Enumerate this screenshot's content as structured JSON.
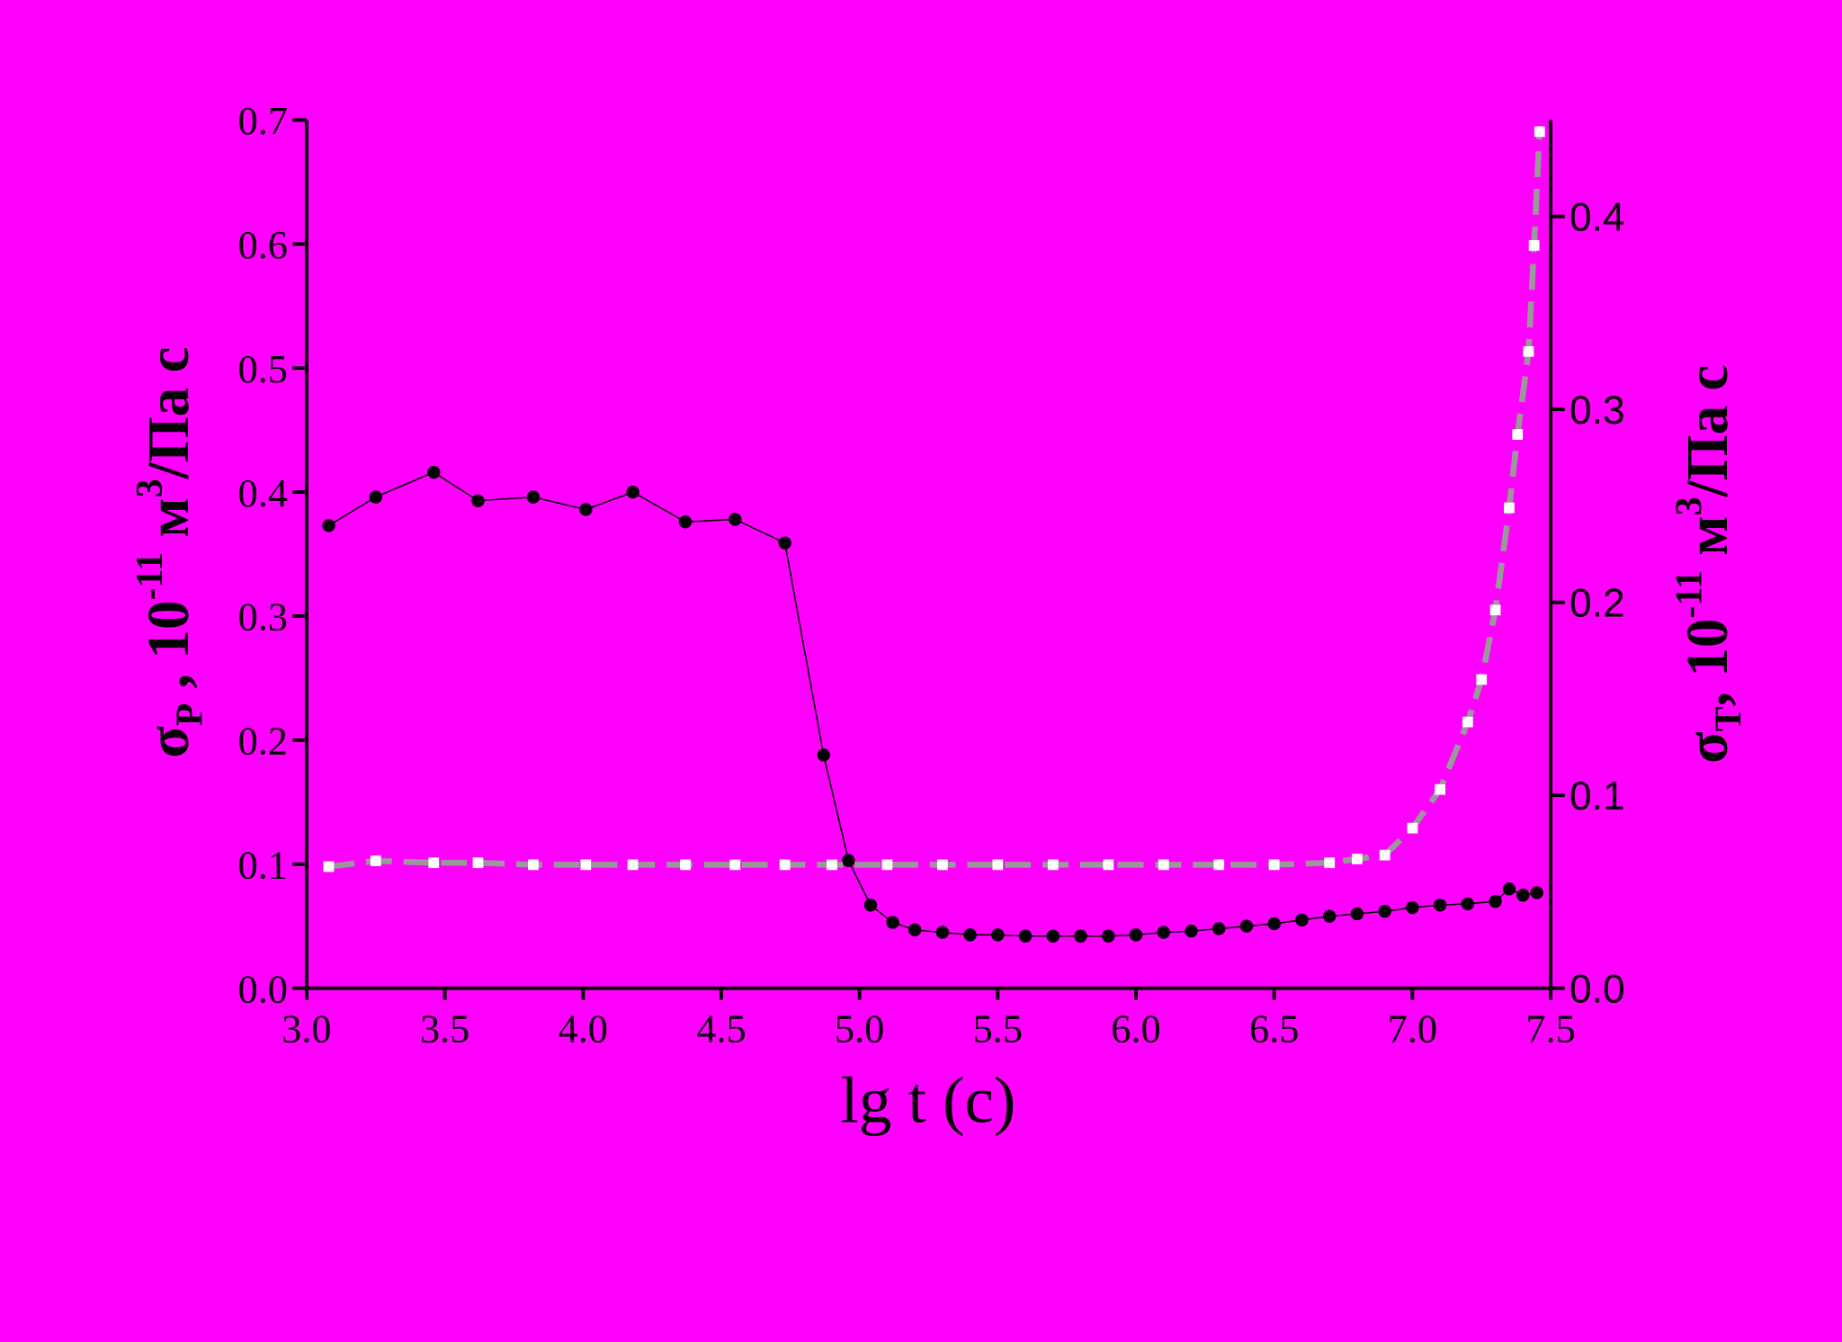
{
  "chart_data": {
    "type": "scatter",
    "background": "#ff00ff",
    "xlabel": "lg t (c)",
    "ylabel": [
      {
        "text": "σ"
      },
      {
        "text": "P",
        "shift": "sub"
      },
      {
        "text": " , 10"
      },
      {
        "text": "-11",
        "shift": "sup"
      },
      {
        "text": " м"
      },
      {
        "text": "3",
        "shift": "sup"
      },
      {
        "text": "/Па с"
      }
    ],
    "y2label": [
      {
        "text": "σ"
      },
      {
        "text": "Т",
        "shift": "sub"
      },
      {
        "text": ", 10"
      },
      {
        "text": "-11",
        "shift": "sup"
      },
      {
        "text": " м"
      },
      {
        "text": "3",
        "shift": "sup"
      },
      {
        "text": "/Па с"
      }
    ],
    "xlim": [
      3.0,
      7.5
    ],
    "xticks": [
      {
        "value": 3,
        "label": "3.0"
      },
      3.5,
      {
        "value": 4,
        "label": "4.0"
      },
      4.5,
      {
        "value": 5,
        "label": "5.0"
      },
      5.5,
      {
        "value": 6,
        "label": "6.0"
      },
      6.5,
      {
        "value": 7,
        "label": "7.0"
      },
      7.5
    ],
    "ylim": [
      0,
      0.7
    ],
    "yticks": [
      {
        "value": 0,
        "label": "0.0"
      },
      0.1,
      0.2,
      0.3,
      0.4,
      0.5,
      0.6,
      0.7
    ],
    "y2lim": [
      0,
      0.45
    ],
    "y2ticks": [
      {
        "value": 0,
        "label": "0.0"
      },
      0.1,
      0.2,
      0.3,
      0.4
    ],
    "series": [
      {
        "color": "#000000",
        "marker": "circle",
        "line_color": "#000000",
        "line_dash": false,
        "x": [
          3.08,
          3.25,
          3.46,
          3.62,
          3.82,
          4.01,
          4.18,
          4.37,
          4.55,
          4.73,
          4.87,
          4.96,
          5.04,
          5.12,
          5.2,
          5.3,
          5.4,
          5.5,
          5.6,
          5.7,
          5.8,
          5.9,
          6.0,
          6.1,
          6.2,
          6.3,
          6.4,
          6.5,
          6.6,
          6.7,
          6.8,
          6.9,
          7.0,
          7.1,
          7.2,
          7.3,
          7.35,
          7.4,
          7.45
        ],
        "values": [
          0.373,
          0.396,
          0.416,
          0.393,
          0.396,
          0.386,
          0.4,
          0.376,
          0.378,
          0.359,
          0.188,
          0.103,
          0.067,
          0.053,
          0.047,
          0.045,
          0.043,
          0.043,
          0.042,
          0.042,
          0.042,
          0.042,
          0.043,
          0.045,
          0.046,
          0.048,
          0.05,
          0.052,
          0.055,
          0.058,
          0.06,
          0.062,
          0.065,
          0.067,
          0.068,
          0.07,
          0.08,
          0.075,
          0.077
        ]
      },
      {
        "color": "#ffffff",
        "marker": "square",
        "line_color": "#999999",
        "line_dash": true,
        "axis": "y2",
        "x": [
          3.08,
          3.25,
          3.46,
          3.62,
          3.82,
          4.01,
          4.18,
          4.37,
          4.55,
          4.73,
          4.9,
          5.1,
          5.3,
          5.5,
          5.7,
          5.9,
          6.1,
          6.3,
          6.5,
          6.7,
          6.8,
          6.9,
          7.0,
          7.1,
          7.2,
          7.25,
          7.3,
          7.35,
          7.38,
          7.42,
          7.44,
          7.46
        ],
        "values": [
          0.063,
          0.066,
          0.065,
          0.065,
          0.064,
          0.064,
          0.064,
          0.064,
          0.064,
          0.064,
          0.064,
          0.064,
          0.064,
          0.064,
          0.064,
          0.064,
          0.064,
          0.064,
          0.064,
          0.065,
          0.067,
          0.069,
          0.083,
          0.103,
          0.138,
          0.16,
          0.196,
          0.249,
          0.287,
          0.33,
          0.385,
          0.444
        ]
      }
    ]
  }
}
